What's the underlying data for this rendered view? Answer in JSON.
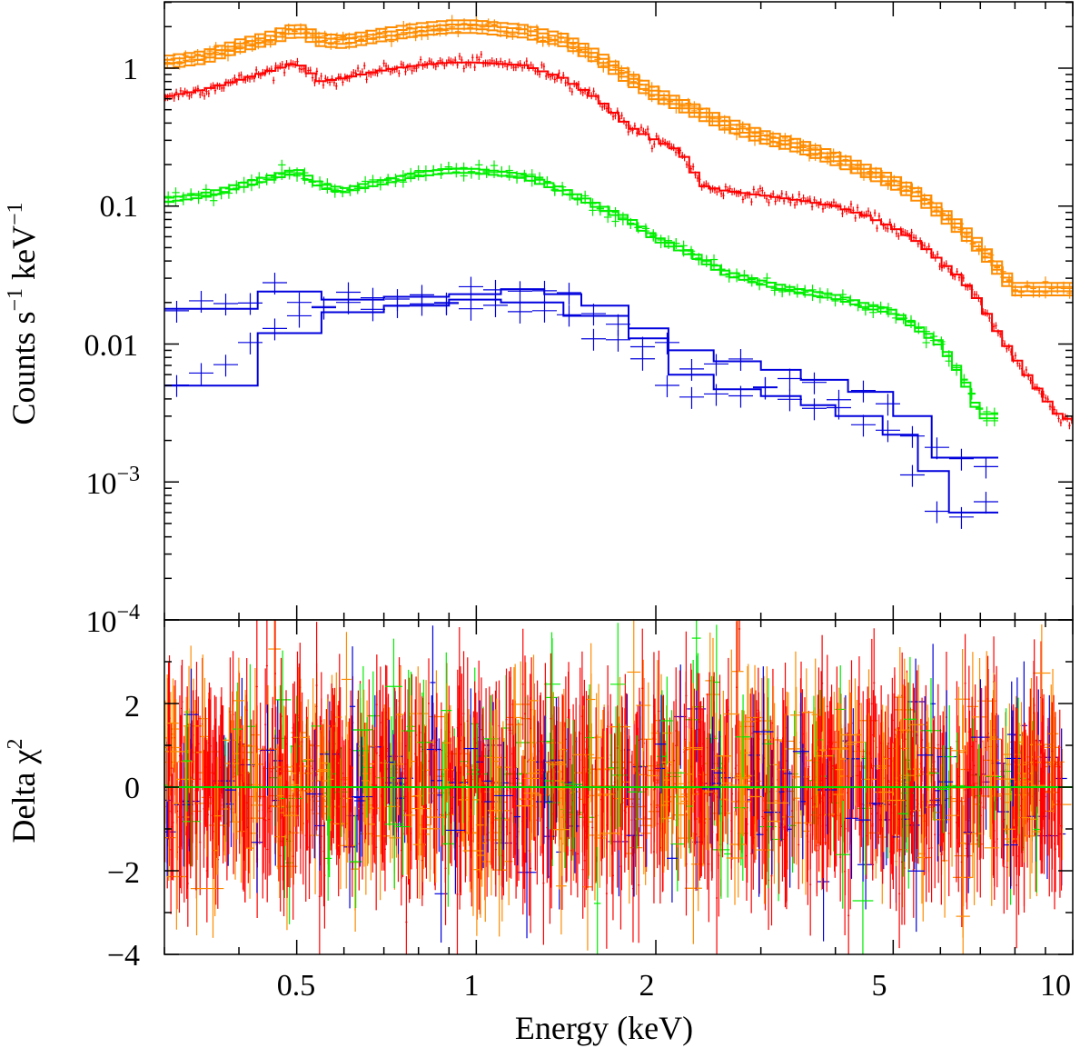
{
  "chart_data": [
    {
      "type": "step",
      "panel": "spectrum",
      "ylabel_main": "Counts s",
      "ylabel_exp1": "−1",
      "ylabel_mid": " keV",
      "ylabel_exp2": "−1",
      "xscale": "log",
      "yscale": "log",
      "xlim": [
        0.3,
        10
      ],
      "ylim": [
        0.0001,
        3
      ],
      "yticks": [
        {
          "value": 1,
          "label": "1"
        },
        {
          "value": 0.1,
          "label": "0.1"
        },
        {
          "value": 0.01,
          "label": "0.01"
        },
        {
          "value": 0.001,
          "base": "10",
          "exp": "−3"
        },
        {
          "value": 0.0001,
          "base": "10",
          "exp": "−4"
        }
      ],
      "series": [
        {
          "name": "orange",
          "color": "#ff8c00",
          "copies": 4,
          "x": [
            0.3,
            0.35,
            0.4,
            0.45,
            0.5,
            0.55,
            0.6,
            0.7,
            0.8,
            0.9,
            1.0,
            1.2,
            1.4,
            1.6,
            1.8,
            2.0,
            2.3,
            2.6,
            3.0,
            3.5,
            4.0,
            4.5,
            5.0,
            5.5,
            6.0,
            6.5,
            7.0,
            7.5,
            8.0,
            9.0,
            10.0
          ],
          "y": [
            1.1,
            1.2,
            1.45,
            1.65,
            1.9,
            1.6,
            1.55,
            1.75,
            1.9,
            2.0,
            2.0,
            1.85,
            1.6,
            1.2,
            0.85,
            0.65,
            0.5,
            0.4,
            0.32,
            0.27,
            0.22,
            0.18,
            0.15,
            0.12,
            0.09,
            0.068,
            0.05,
            0.035,
            0.025,
            0.025,
            0.025
          ]
        },
        {
          "name": "red",
          "color": "#ff0000",
          "copies": 1,
          "x": [
            0.3,
            0.35,
            0.4,
            0.45,
            0.5,
            0.55,
            0.6,
            0.7,
            0.8,
            0.9,
            1.0,
            1.2,
            1.4,
            1.6,
            1.8,
            2.0,
            2.2,
            2.4,
            2.6,
            3.0,
            3.5,
            4.0,
            4.5,
            5.0,
            5.5,
            6.0,
            6.5,
            7.0,
            7.5,
            8.0,
            8.5,
            9.0,
            9.5,
            10.0
          ],
          "y": [
            0.62,
            0.7,
            0.82,
            0.95,
            1.1,
            0.8,
            0.85,
            0.97,
            1.05,
            1.1,
            1.1,
            1.05,
            0.85,
            0.6,
            0.38,
            0.3,
            0.25,
            0.14,
            0.13,
            0.12,
            0.11,
            0.1,
            0.085,
            0.07,
            0.055,
            0.04,
            0.03,
            0.02,
            0.012,
            0.008,
            0.0055,
            0.004,
            0.003,
            0.0028
          ]
        },
        {
          "name": "green",
          "color": "#00ee00",
          "copies": 2,
          "x": [
            0.3,
            0.35,
            0.4,
            0.45,
            0.5,
            0.55,
            0.6,
            0.7,
            0.8,
            0.9,
            1.0,
            1.2,
            1.4,
            1.6,
            1.8,
            2.0,
            2.3,
            2.6,
            3.0,
            3.5,
            4.0,
            4.5,
            5.0,
            5.5,
            6.0,
            6.5,
            7.0,
            7.5
          ],
          "y": [
            0.11,
            0.12,
            0.14,
            0.16,
            0.18,
            0.14,
            0.13,
            0.15,
            0.17,
            0.18,
            0.18,
            0.165,
            0.13,
            0.1,
            0.08,
            0.058,
            0.045,
            0.033,
            0.028,
            0.024,
            0.022,
            0.019,
            0.017,
            0.013,
            0.01,
            0.006,
            0.003,
            0.003
          ]
        },
        {
          "name": "blue-high",
          "color": "#0000dd",
          "copies": 1,
          "x": [
            0.3,
            0.43,
            0.55,
            0.7,
            0.9,
            1.1,
            1.3,
            1.5,
            1.8,
            2.1,
            2.5,
            3.0,
            3.5,
            4.2,
            5.0,
            5.8,
            6.5,
            7.5
          ],
          "y": [
            0.018,
            0.024,
            0.021,
            0.022,
            0.023,
            0.025,
            0.023,
            0.019,
            0.013,
            0.009,
            0.0075,
            0.0065,
            0.0055,
            0.0045,
            0.003,
            0.0015,
            0.0015,
            0.0015
          ]
        },
        {
          "name": "blue-low",
          "color": "#0000dd",
          "copies": 1,
          "x": [
            0.3,
            0.43,
            0.55,
            0.7,
            0.9,
            1.1,
            1.4,
            1.8,
            2.1,
            2.5,
            3.0,
            3.5,
            4.0,
            4.8,
            5.5,
            6.2,
            7.5
          ],
          "y": [
            0.005,
            0.012,
            0.017,
            0.019,
            0.021,
            0.02,
            0.016,
            0.011,
            0.006,
            0.0047,
            0.0042,
            0.0036,
            0.003,
            0.0022,
            0.0012,
            0.0006,
            0.0006
          ]
        }
      ]
    },
    {
      "type": "scatter",
      "panel": "residuals",
      "ylabel": "Delta χ",
      "ylabel_exp": "2",
      "xlabel": "Energy (keV)",
      "xscale": "log",
      "xlim": [
        0.3,
        10
      ],
      "ylim": [
        -4,
        4
      ],
      "yticks": [
        {
          "value": 2,
          "label": "2"
        },
        {
          "value": 0,
          "label": "0"
        },
        {
          "value": -2,
          "label": "−2"
        },
        {
          "value": -4,
          "label": "−4"
        }
      ],
      "xticks": [
        {
          "value": 0.5,
          "label": "0.5"
        },
        {
          "value": 1,
          "label": "1"
        },
        {
          "value": 2,
          "label": "2"
        },
        {
          "value": 5,
          "label": "5"
        },
        {
          "value": 10,
          "label": "10"
        }
      ],
      "zero_line": 0,
      "zero_line_color": "#00dd00",
      "residual_spread": 1.0,
      "series_colors": [
        "#0000dd",
        "#00ee00",
        "#ff8c00",
        "#ff0000"
      ]
    }
  ]
}
